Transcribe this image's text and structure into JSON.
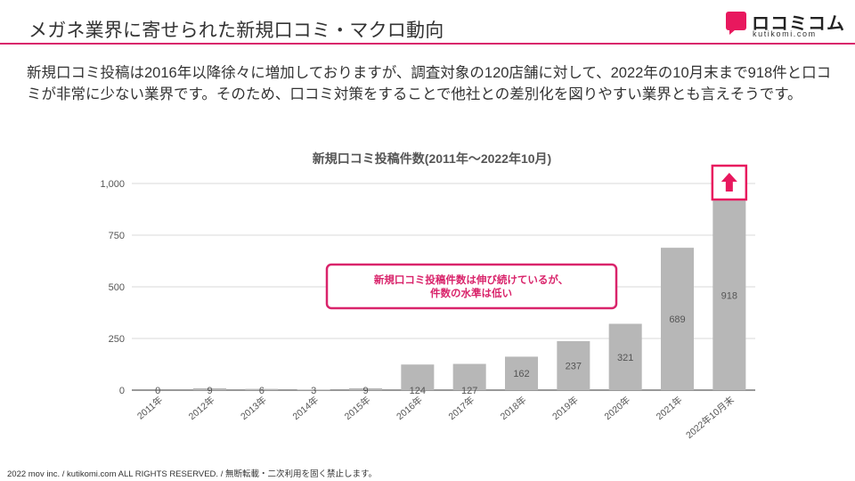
{
  "page": {
    "title": "メガネ業界に寄せられた新規口コミ・マクロ動向",
    "description": "新規口コミ投稿は2016年以降徐々に増加しておりますが、調査対象の120店舗に対して、2022年の10月末まで918件と口コミが非常に少ない業界です。そのため、口コミ対策をすることで他社との差別化を図りやすい業界とも言えそうです。",
    "footer": "2022 mov inc. / kutikomi.com ALL RIGHTS RESERVED. / 無断転載・二次利用を固く禁止します。"
  },
  "logo": {
    "text": "ロコミコム",
    "sub": "kutikomi.com",
    "color": "#e8185e"
  },
  "chart_data": {
    "type": "bar",
    "title": "新規口コミ投稿件数(2011年〜2022年10月)",
    "categories": [
      "2011年",
      "2012年",
      "2013年",
      "2014年",
      "2015年",
      "2016年",
      "2017年",
      "2018年",
      "2019年",
      "2020年",
      "2021年",
      "2022年10月末"
    ],
    "values": [
      0,
      9,
      6,
      3,
      9,
      124,
      127,
      162,
      237,
      321,
      689,
      918
    ],
    "data_labels": [
      "0",
      "9",
      "6",
      "3",
      "9",
      "124",
      "127",
      "162",
      "237",
      "321",
      "689",
      "918"
    ],
    "ylim": [
      0,
      1000
    ],
    "yticks": [
      0,
      250,
      500,
      750,
      1000
    ],
    "ytick_labels": [
      "0",
      "250",
      "500",
      "750",
      "1,000"
    ],
    "grid": true,
    "bar_color": "#b7b7b7",
    "label_color": "#555555",
    "annotation": {
      "lines": [
        "新規口コミ投稿件数は伸び続けているが、",
        "件数の水準は低い"
      ],
      "color": "#d9246b"
    },
    "highlight": {
      "category": "2022年10月末",
      "icon": "up-arrow-icon",
      "color": "#e8185e"
    }
  }
}
